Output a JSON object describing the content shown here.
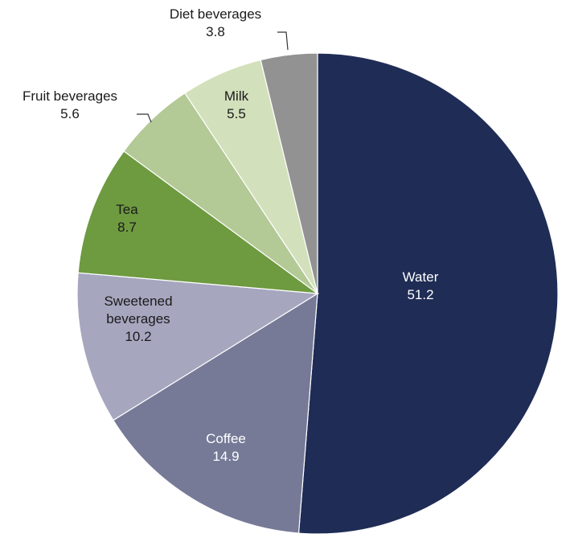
{
  "chart_data": {
    "type": "pie",
    "title": "",
    "slices": [
      {
        "label_lines": [
          "Water"
        ],
        "value": 51.2,
        "value_text": "51.2",
        "color": "#1f2c55",
        "text_color": "#ffffff"
      },
      {
        "label_lines": [
          "Coffee"
        ],
        "value": 14.9,
        "value_text": "14.9",
        "color": "#767a97",
        "text_color": "#ffffff"
      },
      {
        "label_lines": [
          "Sweetened",
          "beverages"
        ],
        "value": 10.2,
        "value_text": "10.2",
        "color": "#a6a6bf",
        "text_color": "#1a1a1a"
      },
      {
        "label_lines": [
          "Tea"
        ],
        "value": 8.7,
        "value_text": "8.7",
        "color": "#6e9a40",
        "text_color": "#1a1a1a"
      },
      {
        "label_lines": [
          "Fruit beverages"
        ],
        "value": 5.6,
        "value_text": "5.6",
        "color": "#b3c996",
        "text_color": "#1a1a1a"
      },
      {
        "label_lines": [
          "Milk"
        ],
        "value": 5.5,
        "value_text": "5.5",
        "color": "#d3e0bc",
        "text_color": "#1a1a1a"
      },
      {
        "label_lines": [
          "Diet beverages"
        ],
        "value": 3.8,
        "value_text": "3.8",
        "color": "#929292",
        "text_color": "#1a1a1a"
      }
    ]
  }
}
